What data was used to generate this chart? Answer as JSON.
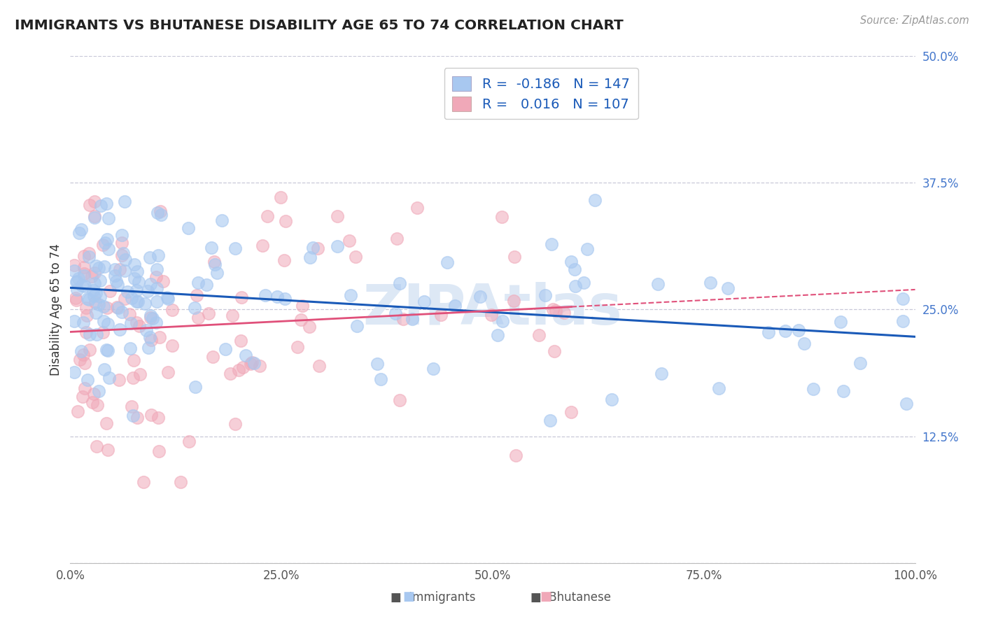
{
  "title": "IMMIGRANTS VS BHUTANESE DISABILITY AGE 65 TO 74 CORRELATION CHART",
  "source": "Source: ZipAtlas.com",
  "ylabel": "Disability Age 65 to 74",
  "xlim": [
    0.0,
    1.0
  ],
  "ylim": [
    0.0,
    0.5
  ],
  "yticks": [
    0.0,
    0.125,
    0.25,
    0.375,
    0.5
  ],
  "ytick_labels": [
    "",
    "12.5%",
    "25.0%",
    "37.5%",
    "50.0%"
  ],
  "xticks": [
    0.0,
    0.25,
    0.5,
    0.75,
    1.0
  ],
  "xtick_labels": [
    "0.0%",
    "25.0%",
    "50.0%",
    "75.0%",
    "100.0%"
  ],
  "legend_r_immigrants": "-0.186",
  "legend_n_immigrants": "147",
  "legend_r_bhutanese": "0.016",
  "legend_n_bhutanese": "107",
  "immigrants_color": "#a8c8f0",
  "bhutanese_color": "#f0a8b8",
  "immigrants_line_color": "#1a5ab8",
  "bhutanese_line_color": "#e0507a",
  "background_color": "#ffffff",
  "grid_color": "#c8c8d8",
  "watermark_color": "#dde8f5",
  "tick_color": "#4477cc",
  "title_color": "#222222",
  "source_color": "#999999"
}
